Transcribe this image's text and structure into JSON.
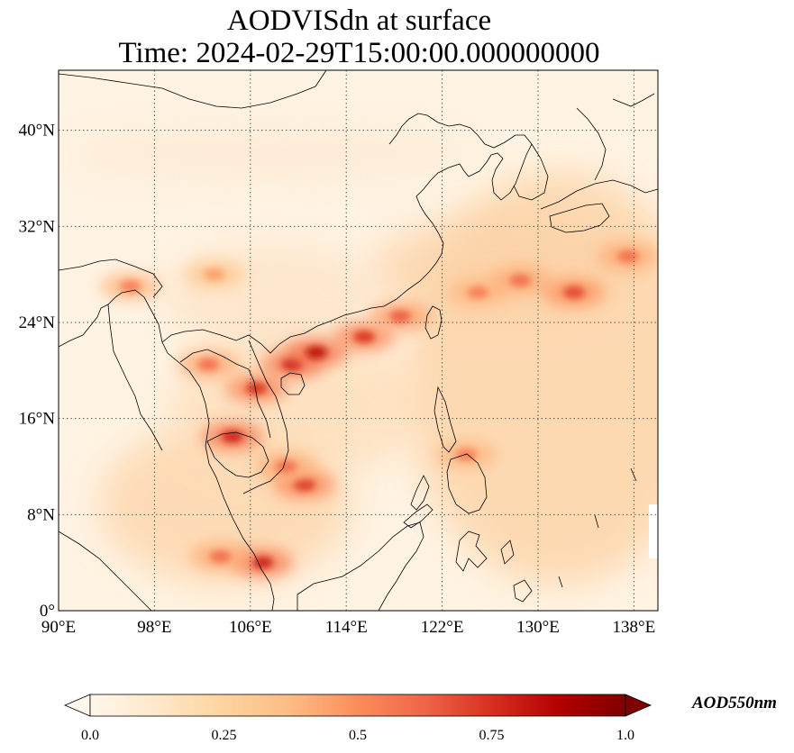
{
  "title": {
    "line1": "AODVISdn at surface",
    "line2": "Time: 2024-02-29T15:00:00.000000000"
  },
  "map": {
    "projection": "PlateCarree",
    "extent": {
      "lon": [
        90,
        140
      ],
      "lat": [
        0,
        45
      ]
    },
    "lon_ticks": [
      {
        "value": 90,
        "label": "90°E"
      },
      {
        "value": 98,
        "label": "98°E"
      },
      {
        "value": 106,
        "label": "106°E"
      },
      {
        "value": 114,
        "label": "114°E"
      },
      {
        "value": 122,
        "label": "122°E"
      },
      {
        "value": 130,
        "label": "130°E"
      },
      {
        "value": 138,
        "label": "138°E"
      }
    ],
    "lat_ticks": [
      {
        "value": 0,
        "label": "0°"
      },
      {
        "value": 8,
        "label": "8°N"
      },
      {
        "value": 16,
        "label": "16°N"
      },
      {
        "value": 24,
        "label": "24°N"
      },
      {
        "value": 32,
        "label": "32°N"
      },
      {
        "value": 40,
        "label": "40°N"
      }
    ],
    "gridlines": "dotted",
    "coastlines": true,
    "borders": true
  },
  "colorbar": {
    "colormap": "OrRd",
    "label": "AOD550nm",
    "min": 0.0,
    "max": 1.0,
    "extend": "both",
    "ticks": [
      {
        "value": 0.0,
        "label": "0.0"
      },
      {
        "value": 0.25,
        "label": "0.25"
      },
      {
        "value": 0.5,
        "label": "0.5"
      },
      {
        "value": 0.75,
        "label": "0.75"
      },
      {
        "value": 1.0,
        "label": "1.0"
      }
    ],
    "colors": [
      "#fff7ec",
      "#fee8c8",
      "#fdd49e",
      "#fdbb84",
      "#fc8d59",
      "#ef6548",
      "#d7301f",
      "#b30000",
      "#7f0000"
    ]
  },
  "hotspots": [
    {
      "lon": 109.5,
      "lat": 20.5,
      "aod": 0.8
    },
    {
      "lon": 106.5,
      "lat": 18.5,
      "aod": 0.75
    },
    {
      "lon": 111.5,
      "lat": 21.5,
      "aod": 0.85
    },
    {
      "lon": 115.5,
      "lat": 22.8,
      "aod": 0.75
    },
    {
      "lon": 118.5,
      "lat": 24.5,
      "aod": 0.65
    },
    {
      "lon": 104.5,
      "lat": 14.5,
      "aod": 0.8
    },
    {
      "lon": 110.5,
      "lat": 10.5,
      "aod": 0.75
    },
    {
      "lon": 109.0,
      "lat": 12.0,
      "aod": 0.6
    },
    {
      "lon": 107.0,
      "lat": 4.0,
      "aod": 0.8
    },
    {
      "lon": 103.5,
      "lat": 4.5,
      "aod": 0.6
    },
    {
      "lon": 102.5,
      "lat": 20.5,
      "aod": 0.6
    },
    {
      "lon": 124.0,
      "lat": 13.0,
      "aod": 0.55
    },
    {
      "lon": 125.0,
      "lat": 26.5,
      "aod": 0.55
    },
    {
      "lon": 128.5,
      "lat": 27.5,
      "aod": 0.6
    },
    {
      "lon": 133.0,
      "lat": 26.5,
      "aod": 0.7
    },
    {
      "lon": 137.5,
      "lat": 29.5,
      "aod": 0.6
    },
    {
      "lon": 96.0,
      "lat": 27.0,
      "aod": 0.55
    },
    {
      "lon": 103.0,
      "lat": 28.0,
      "aod": 0.45
    }
  ]
}
